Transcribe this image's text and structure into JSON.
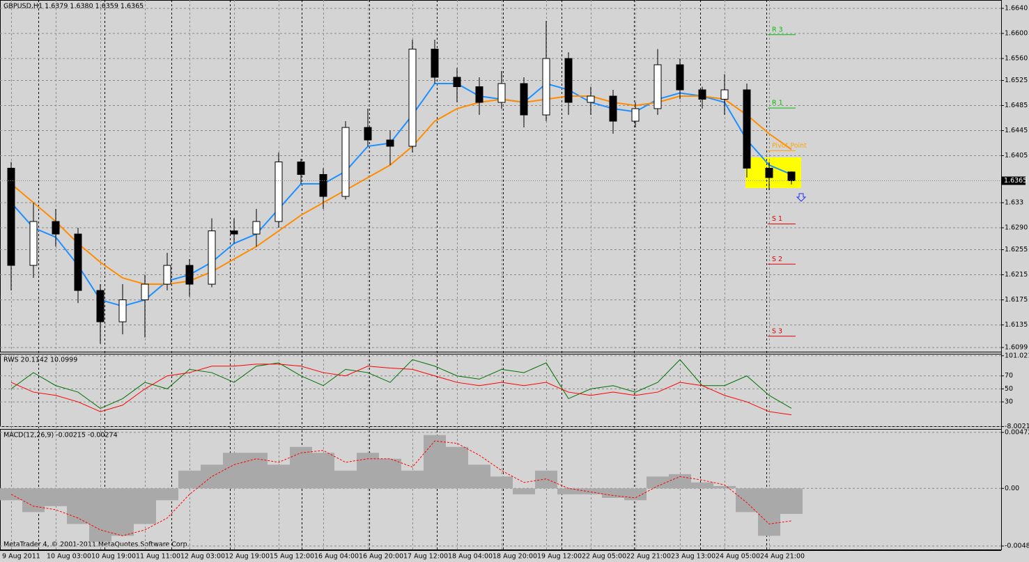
{
  "footer": "MetaTrader 4, © 2001-2011 MetaQuotes Software Corp.",
  "chart_data": [
    {
      "type": "candlestick",
      "title": "GBPUSD,H1  1.6379 1.6380 1.6359 1.6365",
      "categories": [
        "9 Aug 2011",
        null,
        "10 Aug 03:00",
        null,
        "10 Aug 19:00",
        null,
        "11 Aug 11:00",
        null,
        "12 Aug 03:00",
        null,
        "12 Aug 19:00",
        null,
        "15 Aug 12:00",
        null,
        "16 Aug 04:00",
        null,
        "16 Aug 20:00",
        null,
        "17 Aug 12:00",
        null,
        "18 Aug 04:00",
        null,
        "18 Aug 20:00",
        null,
        "19 Aug 12:00",
        null,
        "22 Aug 05:00",
        null,
        "22 Aug 21:00",
        null,
        "23 Aug 13:00",
        null,
        "24 Aug 05:00",
        null,
        "24 Aug 21:00",
        null
      ],
      "open": [
        1.6385,
        1.623,
        1.63,
        1.628,
        1.619,
        1.614,
        1.6175,
        1.62,
        1.623,
        1.62,
        1.6285,
        1.628,
        1.63,
        1.6395,
        1.6375,
        1.634,
        1.645,
        1.643,
        1.642,
        1.6575,
        1.653,
        1.6515,
        1.649,
        1.652,
        1.647,
        1.656,
        1.649,
        1.65,
        1.646,
        1.648,
        1.655,
        1.651,
        1.6495,
        1.651,
        1.6385,
        1.6379
      ],
      "high": [
        1.6395,
        1.633,
        1.632,
        1.629,
        1.62,
        1.62,
        1.6215,
        1.625,
        1.624,
        1.6305,
        1.6305,
        1.632,
        1.641,
        1.64,
        1.6385,
        1.646,
        1.648,
        1.6445,
        1.659,
        1.659,
        1.6545,
        1.653,
        1.654,
        1.653,
        1.662,
        1.657,
        1.6515,
        1.651,
        1.649,
        1.6575,
        1.656,
        1.6515,
        1.6535,
        1.652,
        1.6395,
        1.638
      ],
      "low": [
        1.619,
        1.621,
        1.626,
        1.617,
        1.6105,
        1.612,
        1.6115,
        1.619,
        1.618,
        1.6195,
        1.6265,
        1.626,
        1.629,
        1.636,
        1.632,
        1.6335,
        1.642,
        1.639,
        1.641,
        1.652,
        1.649,
        1.647,
        1.648,
        1.645,
        1.646,
        1.647,
        1.647,
        1.644,
        1.645,
        1.647,
        1.6495,
        1.648,
        1.647,
        1.637,
        1.635,
        1.6359
      ],
      "close": [
        1.623,
        1.63,
        1.628,
        1.619,
        1.614,
        1.6175,
        1.62,
        1.623,
        1.62,
        1.6285,
        1.628,
        1.63,
        1.6395,
        1.6375,
        1.634,
        1.645,
        1.643,
        1.642,
        1.6575,
        1.653,
        1.6515,
        1.649,
        1.652,
        1.647,
        1.656,
        1.649,
        1.65,
        1.646,
        1.648,
        1.655,
        1.651,
        1.6495,
        1.651,
        1.6385,
        1.637,
        1.6365
      ],
      "series": [
        {
          "color": "#1e90ff",
          "values": [
            1.633,
            1.629,
            1.6275,
            1.623,
            1.6175,
            1.6165,
            1.6175,
            1.6205,
            1.6215,
            1.6235,
            1.6265,
            1.628,
            1.632,
            1.636,
            1.636,
            1.638,
            1.642,
            1.6425,
            1.647,
            1.652,
            1.652,
            1.65,
            1.6495,
            1.649,
            1.652,
            1.651,
            1.649,
            1.648,
            1.6475,
            1.6495,
            1.6505,
            1.65,
            1.649,
            1.643,
            1.639,
            1.6375
          ]
        },
        {
          "color": "#ff8c00",
          "values": [
            1.636,
            1.633,
            1.63,
            1.6265,
            1.6235,
            1.621,
            1.62,
            1.62,
            1.6205,
            1.622,
            1.624,
            1.626,
            1.6285,
            1.631,
            1.633,
            1.635,
            1.637,
            1.639,
            1.642,
            1.646,
            1.648,
            1.649,
            1.6495,
            1.649,
            1.6495,
            1.65,
            1.65,
            1.649,
            1.6485,
            1.649,
            1.65,
            1.65,
            1.6495,
            1.647,
            1.644,
            1.6415
          ]
        }
      ],
      "pivots": [
        {
          "name": "R 3",
          "value": 1.6598,
          "color": "#00c000"
        },
        {
          "name": "R 1",
          "value": 1.6481,
          "color": "#00c000"
        },
        {
          "name": "Pivot Point",
          "value": 1.6413,
          "color": "#ffa500"
        },
        {
          "name": "S 1",
          "value": 1.6296,
          "color": "#e00000"
        },
        {
          "name": "S 2",
          "value": 1.6232,
          "color": "#e00000"
        },
        {
          "name": "S 3",
          "value": 1.6117,
          "color": "#e00000"
        }
      ],
      "last_price": 1.6365,
      "ylim": [
        1.60912,
        1.66533
      ],
      "yticks": [
        {
          "value": 1.664,
          "label": "1.6640"
        },
        {
          "value": 1.66,
          "label": "1.6600"
        },
        {
          "value": 1.656,
          "label": "1.6560"
        },
        1.6525,
        1.6485,
        1.6445,
        1.6405,
        1.633,
        {
          "value": 1.629,
          "label": "1.6290"
        },
        1.6255,
        1.6215,
        1.6175,
        1.6135,
        1.6099
      ],
      "grid": true
    },
    {
      "type": "line",
      "title": "RWS 20.1142 10.0999",
      "series": [
        {
          "color": "#007000",
          "values": [
            50,
            75,
            55,
            45,
            20,
            35,
            60,
            50,
            80,
            75,
            60,
            85,
            90,
            70,
            55,
            80,
            75,
            60,
            95,
            85,
            70,
            65,
            80,
            75,
            90,
            35,
            50,
            55,
            45,
            60,
            95,
            55,
            55,
            70,
            40,
            20.1142
          ]
        },
        {
          "color": "#ff0000",
          "values": [
            60,
            45,
            40,
            30,
            15,
            25,
            50,
            70,
            75,
            85,
            85,
            88,
            88,
            85,
            75,
            70,
            85,
            82,
            80,
            70,
            60,
            55,
            60,
            55,
            60,
            45,
            40,
            45,
            40,
            45,
            60,
            55,
            40,
            30,
            15,
            10.0999
          ]
        }
      ],
      "ylim": [
        -8.5,
        104
      ],
      "yticks": [
        101.021,
        70,
        50,
        30,
        -8.0021
      ],
      "grid": true
    },
    {
      "type": "macd",
      "title": "MACD(12,26,9) -0.00215 -0.00274",
      "series": [
        {
          "kind": "bar",
          "color": "#a9a9a9",
          "values": [
            -0.001,
            -0.002,
            -0.0015,
            -0.003,
            -0.0045,
            -0.004,
            -0.003,
            -0.001,
            0.0015,
            0.002,
            0.003,
            0.003,
            0.002,
            0.0035,
            0.003,
            0.0015,
            0.003,
            0.0025,
            0.0015,
            0.0045,
            0.0035,
            0.002,
            0.001,
            -0.0005,
            0.0015,
            -0.0005,
            -0.0005,
            -0.0008,
            -0.001,
            0.001,
            0.0012,
            0.0005,
            0.0002,
            -0.002,
            -0.004,
            -0.00215
          ]
        },
        {
          "kind": "line",
          "dashed": true,
          "color": "#ff0000",
          "values": [
            -0.0005,
            -0.0015,
            -0.0018,
            -0.0025,
            -0.0035,
            -0.004,
            -0.0035,
            -0.0025,
            -0.0005,
            0.001,
            0.002,
            0.0025,
            0.0022,
            0.003,
            0.0032,
            0.0022,
            0.0025,
            0.0025,
            0.0018,
            0.004,
            0.0038,
            0.0028,
            0.0015,
            0.0005,
            0.0008,
            0.0,
            -0.0003,
            -0.0006,
            -0.0008,
            0.0002,
            0.001,
            0.0007,
            0.0003,
            -0.0012,
            -0.003,
            -0.00274
          ]
        }
      ],
      "ylim": [
        -0.00521,
        0.00501
      ],
      "yticks": [
        0.00472,
        {
          "value": 0,
          "label": "0.00"
        },
        -0.00486
      ],
      "grid": true
    }
  ]
}
